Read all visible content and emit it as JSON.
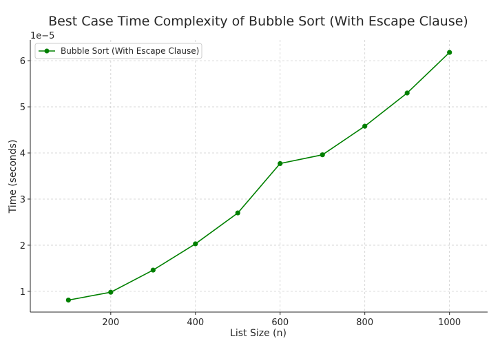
{
  "chart_data": {
    "type": "line",
    "title": "Best Case Time Complexity of Bubble Sort (With Escape Clause)",
    "xlabel": "List Size (n)",
    "ylabel": "Time (seconds)",
    "y_offset_label": "1e−5",
    "x_ticks": [
      200,
      400,
      600,
      800,
      1000
    ],
    "y_ticks": [
      1,
      2,
      3,
      4,
      5,
      6
    ],
    "xlim": [
      10,
      1090
    ],
    "ylim": [
      0.55,
      6.45
    ],
    "y_scale_note": "values in units of 1e-5 seconds",
    "grid": true,
    "legend_position": "top-left",
    "series": [
      {
        "name": "Bubble Sort (With Escape Clause)",
        "color": "#008000",
        "marker": "circle",
        "x": [
          100,
          200,
          300,
          400,
          500,
          600,
          700,
          800,
          900,
          1000
        ],
        "y": [
          0.81,
          0.98,
          1.46,
          2.03,
          2.7,
          3.77,
          3.96,
          4.58,
          5.3,
          6.18
        ]
      }
    ]
  }
}
